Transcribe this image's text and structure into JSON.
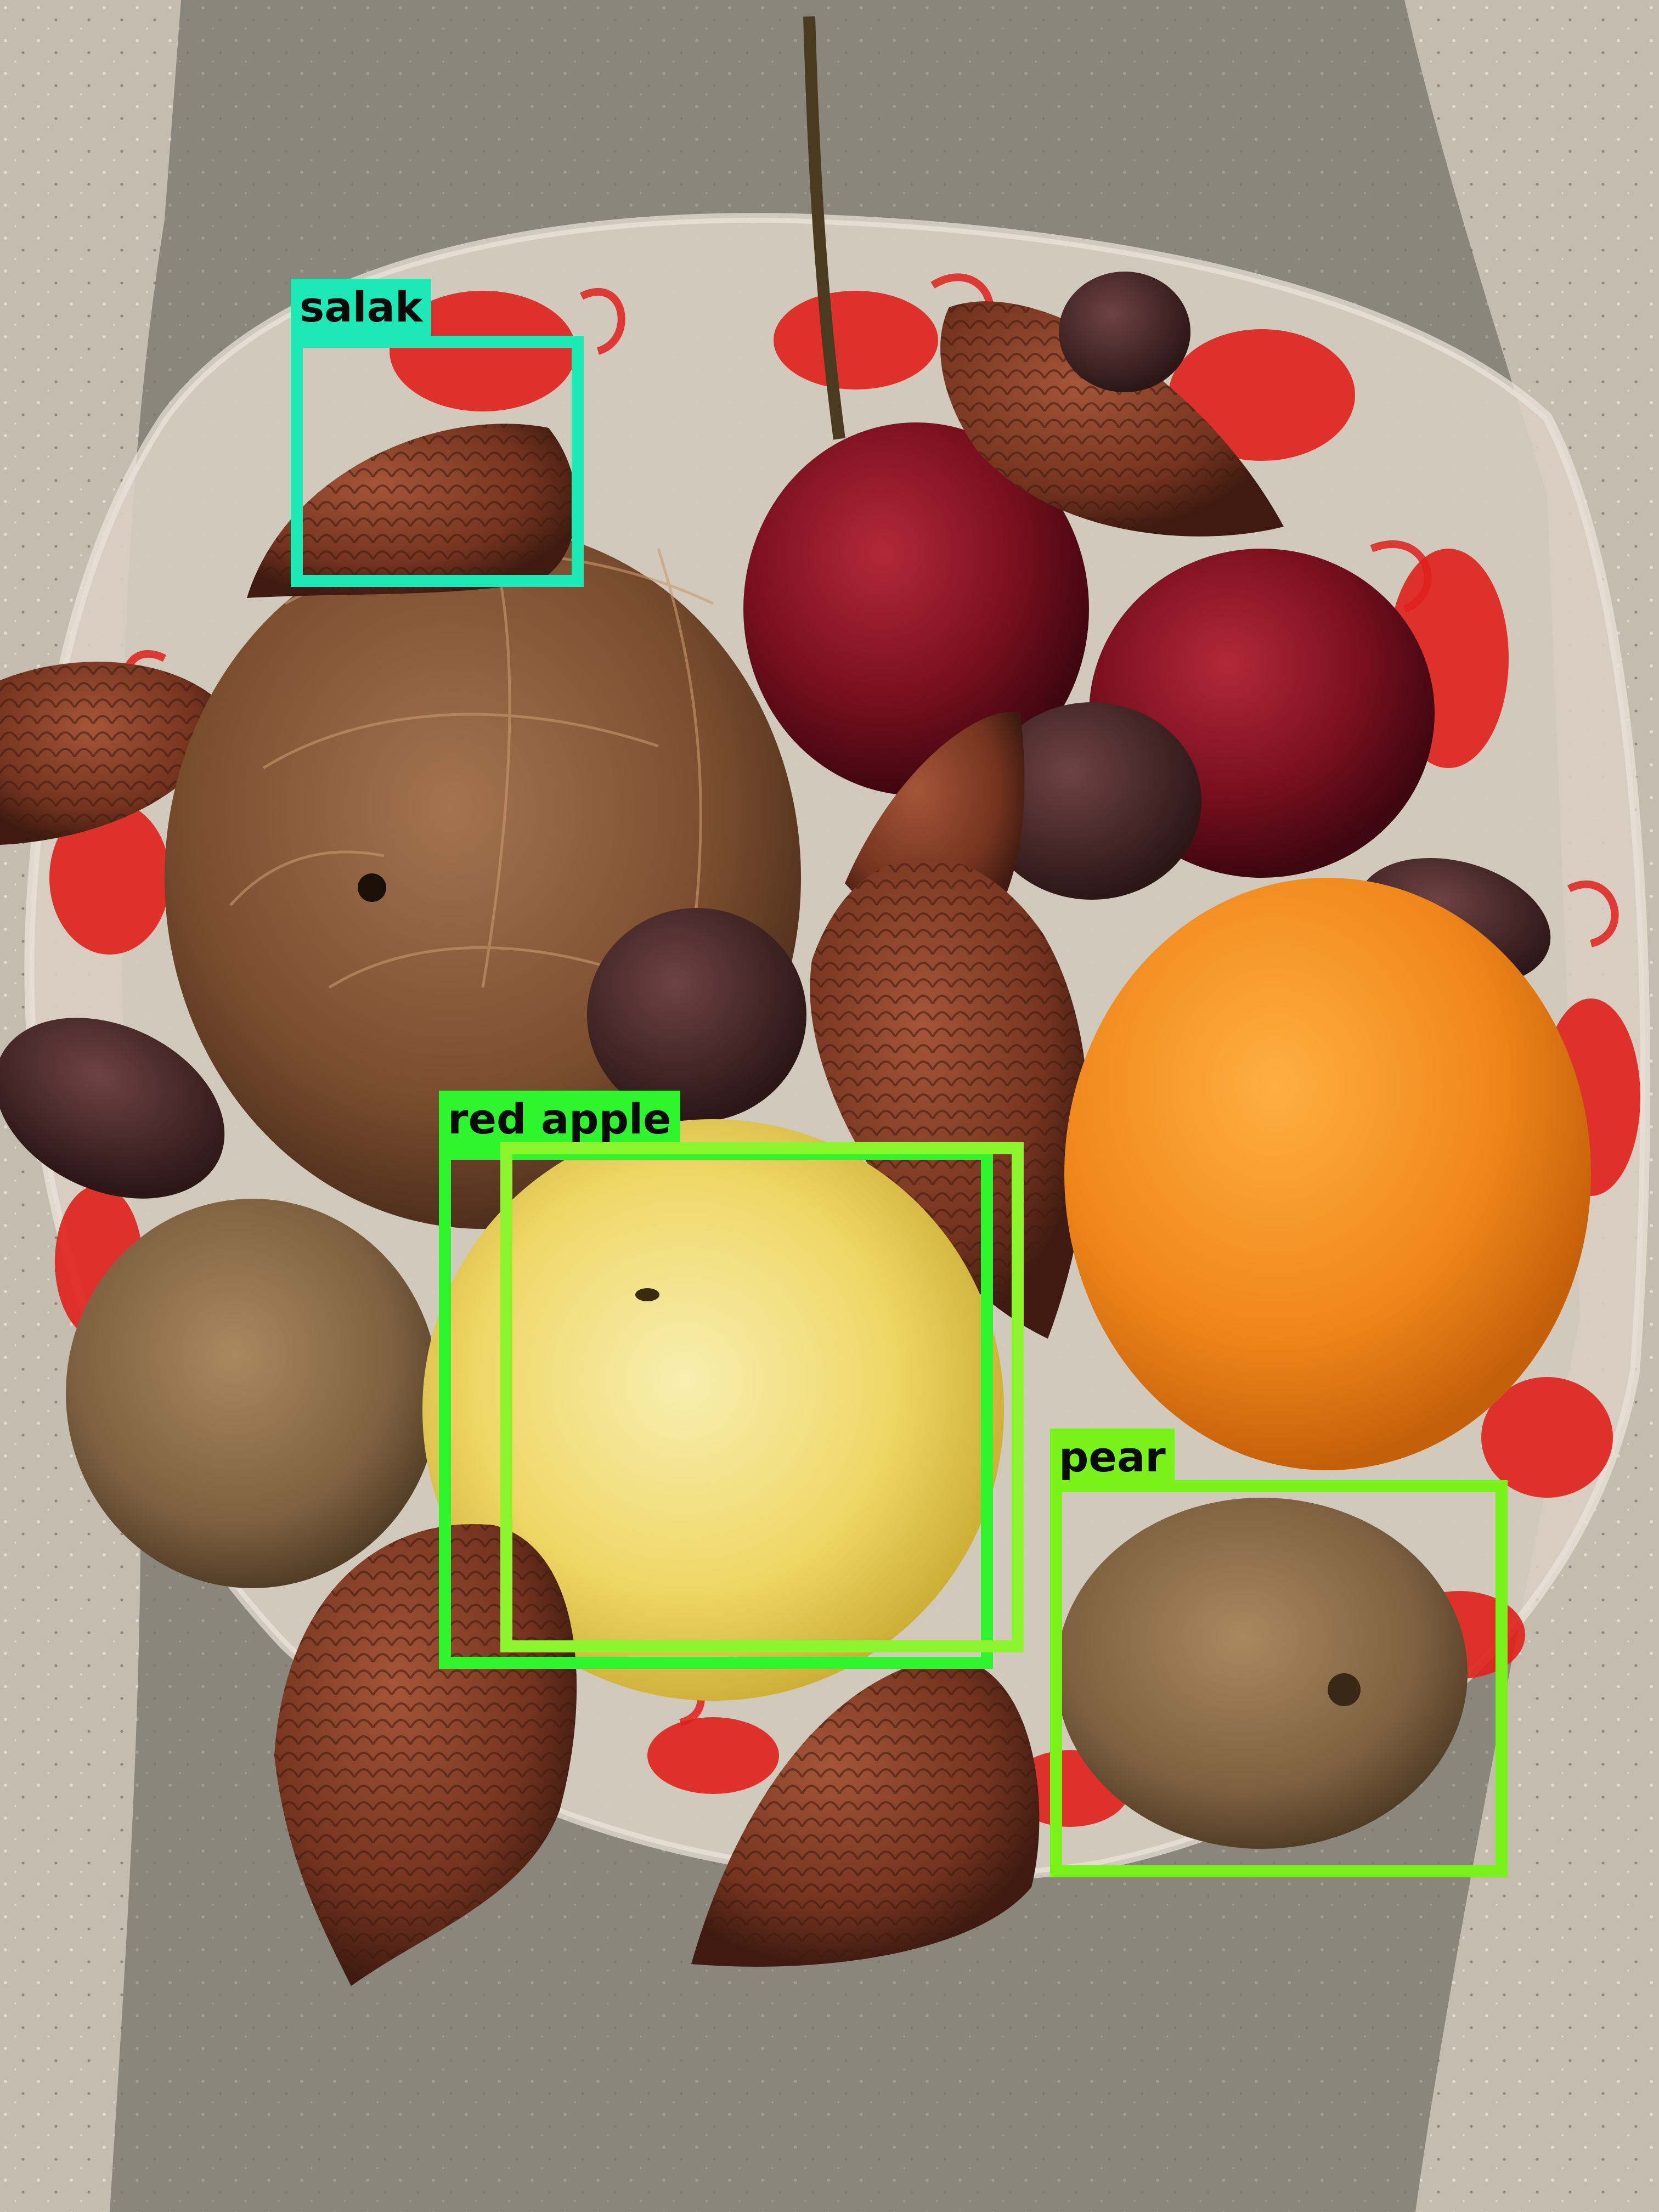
{
  "detections": [
    {
      "label": "salak",
      "color": "#1de9b6"
    },
    {
      "label": "red apple",
      "color": "#2ef52e"
    },
    {
      "label": "",
      "color": "#8cf52e"
    },
    {
      "label": "pear",
      "color": "#79f21c"
    }
  ],
  "colors": {
    "ground": "#bdb4a6",
    "shadow": "#7f7a72",
    "plate_print": "#e0201c",
    "coconut": "#8a5a38",
    "salak": "#7a3a24",
    "apple": "#7e0f1e",
    "orange": "#f08a1c",
    "yellow_fruit": "#f0dc6a",
    "kiwi": "#8a6a44",
    "date": "#4a2a28"
  }
}
